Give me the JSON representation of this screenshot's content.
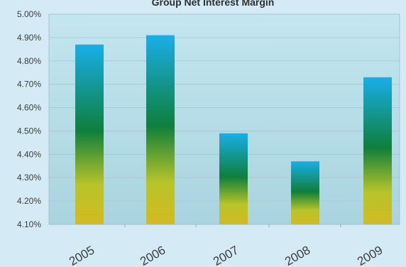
{
  "chart_data": {
    "type": "bar",
    "title": "Group Net Interest Margin",
    "categories": [
      "2005",
      "2006",
      "2007",
      "2008",
      "2009"
    ],
    "values": [
      4.87,
      4.91,
      4.49,
      4.37,
      4.73
    ],
    "ylim": [
      4.1,
      5.0
    ],
    "yticks": [
      "4.10%",
      "4.20%",
      "4.30%",
      "4.40%",
      "4.50%",
      "4.60%",
      "4.70%",
      "4.80%",
      "4.90%",
      "5.00%"
    ],
    "grid": true,
    "colors": {
      "background": "#d4ebf6",
      "plot_area": "#b7dbe6",
      "gridline": "#a8c6d2",
      "axis_text": "#3c3c3c",
      "bar_top": "#19aee8",
      "bar_mid": "#0f7f3b",
      "bar_low": "#b8c42a",
      "bar_bottom": "#d3ba22"
    }
  }
}
